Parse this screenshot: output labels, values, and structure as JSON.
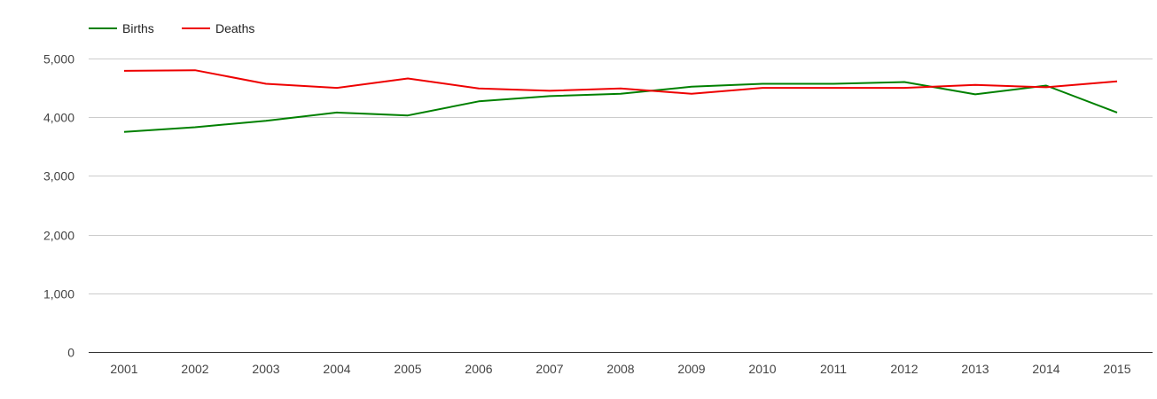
{
  "chart_data": {
    "type": "line",
    "title": "",
    "xlabel": "",
    "ylabel": "",
    "categories": [
      "2001",
      "2002",
      "2003",
      "2004",
      "2005",
      "2006",
      "2007",
      "2008",
      "2009",
      "2010",
      "2011",
      "2012",
      "2013",
      "2014",
      "2015"
    ],
    "ylim": [
      0,
      5000
    ],
    "y_ticks": [
      0,
      1000,
      2000,
      3000,
      4000,
      5000
    ],
    "y_tick_labels": [
      "0",
      "1,000",
      "2,000",
      "3,000",
      "4,000",
      "5,000"
    ],
    "grid": true,
    "legend_position": "top-left",
    "series": [
      {
        "name": "Births",
        "color": "#008000",
        "values": [
          3750,
          3830,
          3940,
          4080,
          4030,
          4270,
          4360,
          4400,
          4520,
          4570,
          4570,
          4600,
          4390,
          4540,
          4080
        ]
      },
      {
        "name": "Deaths",
        "color": "#ee0000",
        "values": [
          4790,
          4800,
          4570,
          4500,
          4660,
          4490,
          4450,
          4490,
          4400,
          4500,
          4500,
          4500,
          4550,
          4510,
          4610
        ]
      }
    ]
  }
}
